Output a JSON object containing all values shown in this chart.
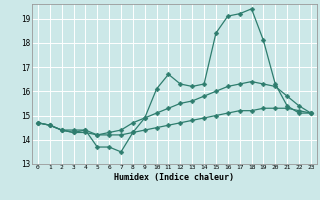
{
  "title": "",
  "xlabel": "Humidex (Indice chaleur)",
  "xlim": [
    -0.5,
    23.5
  ],
  "ylim": [
    13,
    19.6
  ],
  "yticks": [
    13,
    14,
    15,
    16,
    17,
    18,
    19
  ],
  "xticks": [
    0,
    1,
    2,
    3,
    4,
    5,
    6,
    7,
    8,
    9,
    10,
    11,
    12,
    13,
    14,
    15,
    16,
    17,
    18,
    19,
    20,
    21,
    22,
    23
  ],
  "bg_color": "#cce8e8",
  "line_color": "#2e7d6e",
  "grid_color": "#ffffff",
  "line1": [
    14.7,
    14.6,
    14.4,
    14.3,
    14.4,
    13.7,
    13.7,
    13.5,
    14.3,
    14.9,
    16.1,
    16.7,
    16.3,
    16.2,
    16.3,
    18.4,
    19.1,
    19.2,
    19.4,
    18.1,
    16.3,
    15.4,
    15.1,
    15.1
  ],
  "line2": [
    14.7,
    14.6,
    14.4,
    14.4,
    14.4,
    14.2,
    14.3,
    14.4,
    14.7,
    14.9,
    15.1,
    15.3,
    15.5,
    15.6,
    15.8,
    16.0,
    16.2,
    16.3,
    16.4,
    16.3,
    16.2,
    15.8,
    15.4,
    15.1
  ],
  "line3": [
    14.7,
    14.6,
    14.4,
    14.3,
    14.3,
    14.2,
    14.2,
    14.2,
    14.3,
    14.4,
    14.5,
    14.6,
    14.7,
    14.8,
    14.9,
    15.0,
    15.1,
    15.2,
    15.2,
    15.3,
    15.3,
    15.3,
    15.2,
    15.1
  ]
}
